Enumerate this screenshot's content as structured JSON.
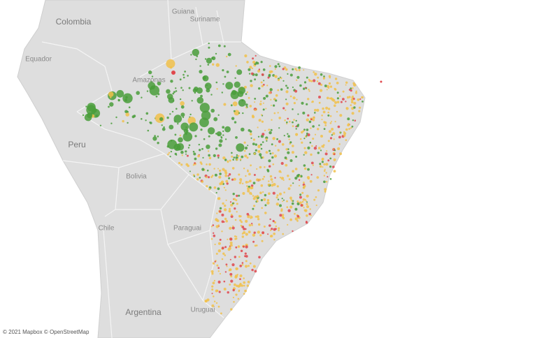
{
  "map": {
    "labels": [
      "Colombia",
      "Guiana",
      "Suriname",
      "Equador",
      "Amazonas",
      "Peru",
      "Bolivia",
      "Paraguai",
      "Chile",
      "Argentina",
      "Uruguai"
    ],
    "attribution": "© 2021 Mapbox © OpenStreetMap"
  }
}
